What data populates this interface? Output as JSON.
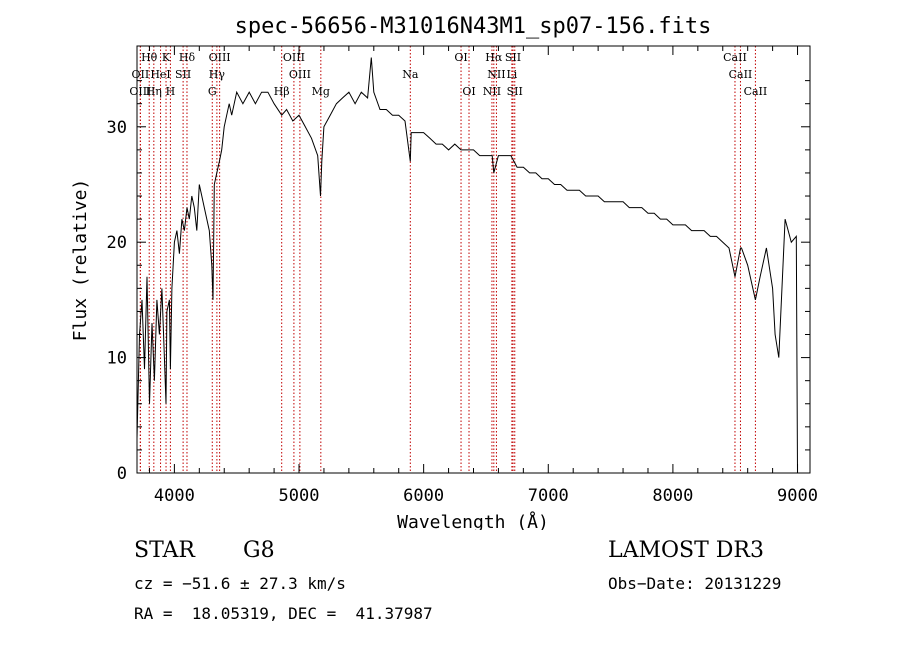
{
  "chart_data": {
    "type": "line",
    "title": "spec-56656-M31016N43M1_sp07-156.fits",
    "xlabel": "Wavelength (Å)",
    "ylabel": "Flux (relative)",
    "xlim": [
      3700,
      9100
    ],
    "ylim": [
      0,
      37
    ],
    "xticks": [
      4000,
      5000,
      6000,
      7000,
      8000,
      9000
    ],
    "yticks": [
      0,
      10,
      20,
      30
    ],
    "grid": false,
    "series": [
      {
        "color": "#000000",
        "x": [
          3700,
          3720,
          3740,
          3760,
          3780,
          3800,
          3820,
          3840,
          3860,
          3880,
          3900,
          3920,
          3933,
          3940,
          3960,
          3968,
          3980,
          4000,
          4020,
          4040,
          4060,
          4080,
          4101,
          4120,
          4140,
          4160,
          4180,
          4200,
          4220,
          4240,
          4260,
          4280,
          4300,
          4310,
          4320,
          4340,
          4361,
          4380,
          4400,
          4420,
          4440,
          4460,
          4480,
          4500,
          4550,
          4600,
          4650,
          4700,
          4750,
          4800,
          4861,
          4900,
          4950,
          5000,
          5050,
          5100,
          5150,
          5172,
          5183,
          5200,
          5250,
          5300,
          5350,
          5400,
          5450,
          5500,
          5550,
          5580,
          5600,
          5650,
          5700,
          5750,
          5800,
          5850,
          5893,
          5900,
          5950,
          6000,
          6050,
          6100,
          6150,
          6200,
          6250,
          6300,
          6350,
          6400,
          6450,
          6500,
          6550,
          6563,
          6600,
          6650,
          6700,
          6750,
          6800,
          6850,
          6900,
          6950,
          7000,
          7050,
          7100,
          7150,
          7200,
          7250,
          7300,
          7350,
          7400,
          7450,
          7500,
          7550,
          7600,
          7650,
          7700,
          7750,
          7800,
          7850,
          7900,
          7950,
          8000,
          8050,
          8100,
          8150,
          8200,
          8250,
          8300,
          8350,
          8400,
          8450,
          8498,
          8542,
          8550,
          8600,
          8662,
          8700,
          8750,
          8800,
          8820,
          8850,
          8900,
          8950,
          8990,
          9000
        ],
        "y": [
          3,
          12,
          15,
          9,
          17,
          6,
          13,
          8,
          15,
          12,
          16,
          10,
          6,
          14,
          15,
          9,
          16,
          20,
          21,
          19,
          22,
          21,
          23,
          22,
          24,
          23,
          21,
          25,
          24,
          23,
          22,
          21,
          18,
          15,
          25,
          26,
          27,
          28,
          30,
          31,
          32,
          31,
          32,
          33,
          32,
          33,
          32,
          33,
          33,
          32,
          31,
          31.5,
          30.5,
          31,
          30,
          29,
          27.5,
          24,
          27,
          30,
          31,
          32,
          32.5,
          33,
          32,
          33,
          32.5,
          36,
          33,
          31.5,
          31.5,
          31,
          31,
          30.5,
          27,
          29.5,
          29.5,
          29.5,
          29,
          28.5,
          28.5,
          28,
          28.5,
          28,
          28,
          28,
          27.5,
          27.5,
          27.5,
          26,
          27.5,
          27.5,
          27.5,
          26.5,
          26.5,
          26,
          26,
          25.5,
          25.5,
          25,
          25,
          24.5,
          24.5,
          24.5,
          24,
          24,
          24,
          23.5,
          23.5,
          23.5,
          23.5,
          23,
          23,
          23,
          22.5,
          22.5,
          22,
          22,
          21.5,
          21.5,
          21.5,
          21,
          21,
          21,
          20.5,
          20.5,
          20,
          19.5,
          17,
          19.5,
          19.5,
          18,
          15,
          17,
          19.5,
          16,
          12,
          10,
          22,
          20,
          20.5,
          0
        ]
      }
    ],
    "line_markers": [
      {
        "label": "Hθ",
        "wl": 3798,
        "row": 0,
        "ha": "center"
      },
      {
        "label": "K",
        "wl": 3933,
        "row": 0,
        "ha": "center"
      },
      {
        "label": "Hδ",
        "wl": 4101,
        "row": 0,
        "ha": "center"
      },
      {
        "label": "OIII",
        "wl": 4363,
        "row": 0,
        "ha": "center"
      },
      {
        "label": "OIII",
        "wl": 4959,
        "row": 0,
        "ha": "center"
      },
      {
        "label": "OI",
        "wl": 6300,
        "row": 0,
        "ha": "center"
      },
      {
        "label": "Hα",
        "wl": 6563,
        "row": 0,
        "ha": "center"
      },
      {
        "label": "SII",
        "wl": 6717,
        "row": 0,
        "ha": "center"
      },
      {
        "label": "CaII",
        "wl": 8498,
        "row": 0,
        "ha": "center"
      },
      {
        "label": "OII",
        "wl": 3727,
        "row": 1,
        "ha": "center"
      },
      {
        "label": "HeI",
        "wl": 3889,
        "row": 1,
        "ha": "center"
      },
      {
        "label": "SII",
        "wl": 4070,
        "row": 1,
        "ha": "center"
      },
      {
        "label": "Hγ",
        "wl": 4341,
        "row": 1,
        "ha": "center"
      },
      {
        "label": "OIII",
        "wl": 5007,
        "row": 1,
        "ha": "center"
      },
      {
        "label": "Na",
        "wl": 5893,
        "row": 1,
        "ha": "center"
      },
      {
        "label": "NII",
        "wl": 6584,
        "row": 1,
        "ha": "center"
      },
      {
        "label": "Li",
        "wl": 6708,
        "row": 1,
        "ha": "center"
      },
      {
        "label": "CaII",
        "wl": 8542,
        "row": 1,
        "ha": "center"
      },
      {
        "label": "OIII",
        "wl": 3727,
        "row": 2,
        "ha": "center"
      },
      {
        "label": "Hη",
        "wl": 3835,
        "row": 2,
        "ha": "center"
      },
      {
        "label": "H",
        "wl": 3968,
        "row": 2,
        "ha": "center"
      },
      {
        "label": "G",
        "wl": 4304,
        "row": 2,
        "ha": "center"
      },
      {
        "label": "Hβ",
        "wl": 4861,
        "row": 2,
        "ha": "center"
      },
      {
        "label": "Mg",
        "wl": 5175,
        "row": 2,
        "ha": "center"
      },
      {
        "label": "OI",
        "wl": 6364,
        "row": 2,
        "ha": "center"
      },
      {
        "label": "NII",
        "wl": 6548,
        "row": 2,
        "ha": "center"
      },
      {
        "label": "SII",
        "wl": 6731,
        "row": 2,
        "ha": "center"
      },
      {
        "label": "CaII",
        "wl": 8662,
        "row": 2,
        "ha": "center"
      }
    ],
    "line_color": "#c00000"
  },
  "info": {
    "object_type": "STAR",
    "subclass": "G8",
    "survey": "LAMOST DR3",
    "cz": "cz = −51.6 ± 27.3 km/s",
    "obs_date": "Obs−Date: 20131229",
    "radec": "RA =  18.05319, DEC =  41.37987"
  }
}
